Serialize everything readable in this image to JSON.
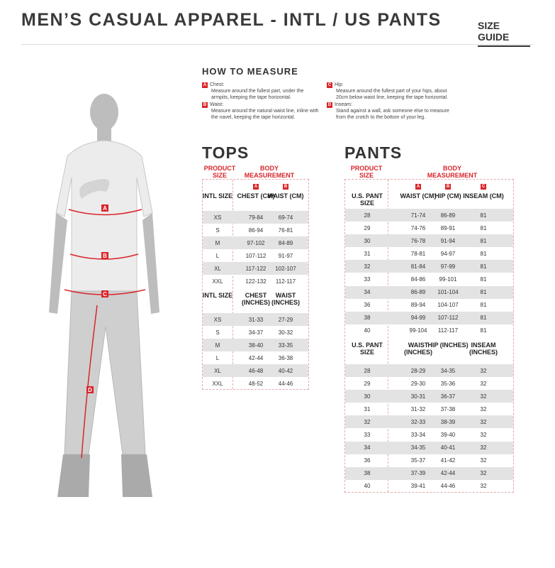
{
  "header": {
    "title": "MEN’S CASUAL APPAREL - INTL / US PANTS",
    "size_guide": "SIZE GUIDE"
  },
  "how_to_measure": {
    "title": "HOW TO MEASURE",
    "items": [
      {
        "badge": "A",
        "label": "Chest:",
        "text": "Measure around the fullest part, under the armpits, keeping the tape horizontal."
      },
      {
        "badge": "B",
        "label": "Waist:",
        "text": "Measure around the natural waist line, inline with the navel, keeping the tape horizontal."
      },
      {
        "badge": "C",
        "label": "Hip:",
        "text": "Measure around the fullest part of your hips, about 20cm below waist line, keeping the tape horizontal."
      },
      {
        "badge": "D",
        "label": "Inseam:",
        "text": "Stand against a wall, ask someone else to measure from the crotch to the bottom of your leg."
      }
    ]
  },
  "figure": {
    "markers": [
      "A",
      "B",
      "C",
      "D"
    ]
  },
  "tops": {
    "title": "TOPS",
    "product_size": "PRODUCT SIZE",
    "body_measurement": "BODY MEASUREMENT",
    "badges": [
      "A",
      "B"
    ],
    "cm_headers": [
      "INTL SIZE",
      "CHEST (CM)",
      "WAIST (CM)"
    ],
    "cm_rows": [
      [
        "XS",
        "79-84",
        "69-74"
      ],
      [
        "S",
        "86-94",
        "76-81"
      ],
      [
        "M",
        "97-102",
        "84-89"
      ],
      [
        "L",
        "107-112",
        "91-97"
      ],
      [
        "XL",
        "117-122",
        "102-107"
      ],
      [
        "XXL",
        "122-132",
        "112-117"
      ]
    ],
    "in_headers": [
      "INTL SIZE",
      "CHEST (INCHES)",
      "WAIST (INCHES)"
    ],
    "in_rows": [
      [
        "XS",
        "31-33",
        "27-29"
      ],
      [
        "S",
        "34-37",
        "30-32"
      ],
      [
        "M",
        "38-40",
        "33-35"
      ],
      [
        "L",
        "42-44",
        "36-38"
      ],
      [
        "XL",
        "46-48",
        "40-42"
      ],
      [
        "XXL",
        "48-52",
        "44-46"
      ]
    ]
  },
  "pants": {
    "title": "PANTS",
    "product_size": "PRODUCT SIZE",
    "body_measurement": "BODY MEASUREMENT",
    "badges": [
      "A",
      "B",
      "C"
    ],
    "cm_headers": [
      "U.S. PANT SIZE",
      "WAIST (CM)",
      "HIP (CM)",
      "INSEAM (CM)"
    ],
    "cm_rows": [
      [
        "28",
        "71-74",
        "86-89",
        "81"
      ],
      [
        "29",
        "74-76",
        "89-91",
        "81"
      ],
      [
        "30",
        "76-78",
        "91-94",
        "81"
      ],
      [
        "31",
        "78-81",
        "94-97",
        "81"
      ],
      [
        "32",
        "81-84",
        "97-99",
        "81"
      ],
      [
        "33",
        "84-86",
        "99-101",
        "81"
      ],
      [
        "34",
        "86-89",
        "101-104",
        "81"
      ],
      [
        "36",
        "89-94",
        "104-107",
        "81"
      ],
      [
        "38",
        "94-99",
        "107-112",
        "81"
      ],
      [
        "40",
        "99-104",
        "112-117",
        "81"
      ]
    ],
    "in_headers": [
      "U.S. PANT SIZE",
      "WAIST (INCHES)",
      "HIP (INCHES)",
      "INSEAM (INCHES)"
    ],
    "in_rows": [
      [
        "28",
        "28-29",
        "34-35",
        "32"
      ],
      [
        "29",
        "29-30",
        "35-36",
        "32"
      ],
      [
        "30",
        "30-31",
        "36-37",
        "32"
      ],
      [
        "31",
        "31-32",
        "37-38",
        "32"
      ],
      [
        "32",
        "32-33",
        "38-39",
        "32"
      ],
      [
        "33",
        "33-34",
        "39-40",
        "32"
      ],
      [
        "34",
        "34-35",
        "40-41",
        "32"
      ],
      [
        "36",
        "35-37",
        "41-42",
        "32"
      ],
      [
        "38",
        "37-39",
        "42-44",
        "32"
      ],
      [
        "40",
        "39-41",
        "44-46",
        "32"
      ]
    ]
  },
  "colors": {
    "accent": "#d9252a",
    "row_alt": "#e3e3e3",
    "text": "#333333"
  }
}
